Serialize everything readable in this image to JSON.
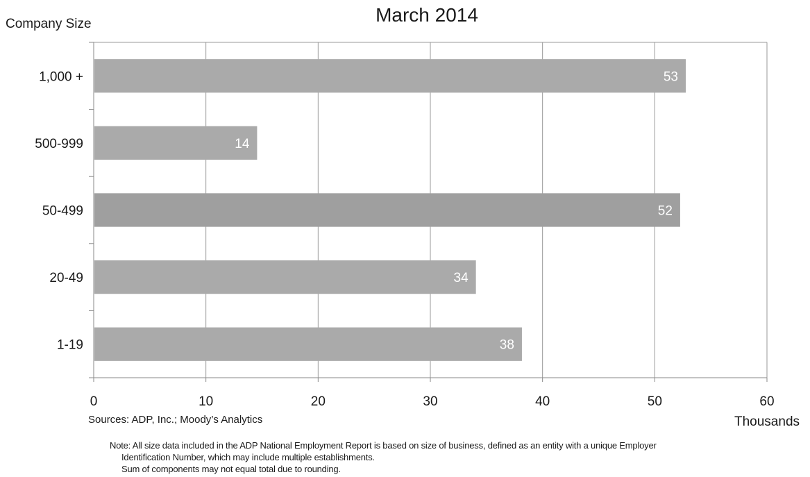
{
  "chart_data": {
    "type": "bar",
    "orientation": "horizontal",
    "title": "March 2014",
    "ylabel": "Company Size",
    "xlabel": "Thousands",
    "categories": [
      "1,000 +",
      "500-999",
      "50-499",
      "20-49",
      "1-19"
    ],
    "values": [
      53,
      14,
      52,
      34,
      38
    ],
    "precise_values": [
      52.7,
      14.5,
      52.2,
      34.0,
      38.1
    ],
    "xlim": [
      0,
      60
    ],
    "xticks": [
      0,
      10,
      20,
      30,
      40,
      50,
      60
    ],
    "grid": true,
    "legend": "none",
    "colors": {
      "bar": "#aaaaaa",
      "bar_alt": "#9f9f9f",
      "grid": "#9a9a9a",
      "label_inside": "#ffffff"
    }
  },
  "footer": {
    "sources": "Sources: ADP, Inc.; Moody’s Analytics",
    "note_line1": "Note:  All size data included in the ADP National Employment Report is based on size of business, defined as an entity with a unique Employer",
    "note_line2": "Identification Number, which may include multiple establishments.",
    "note_line3": "Sum of components may not equal total due to rounding."
  }
}
